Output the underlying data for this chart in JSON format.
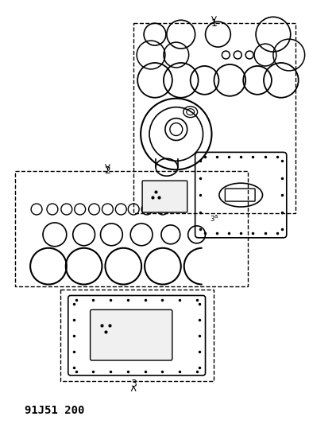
{
  "title": "91J51 200",
  "background_color": "#ffffff",
  "line_color": "#000000",
  "dashed_color": "#888888",
  "label1": "1",
  "label2": "2",
  "label3": "3"
}
